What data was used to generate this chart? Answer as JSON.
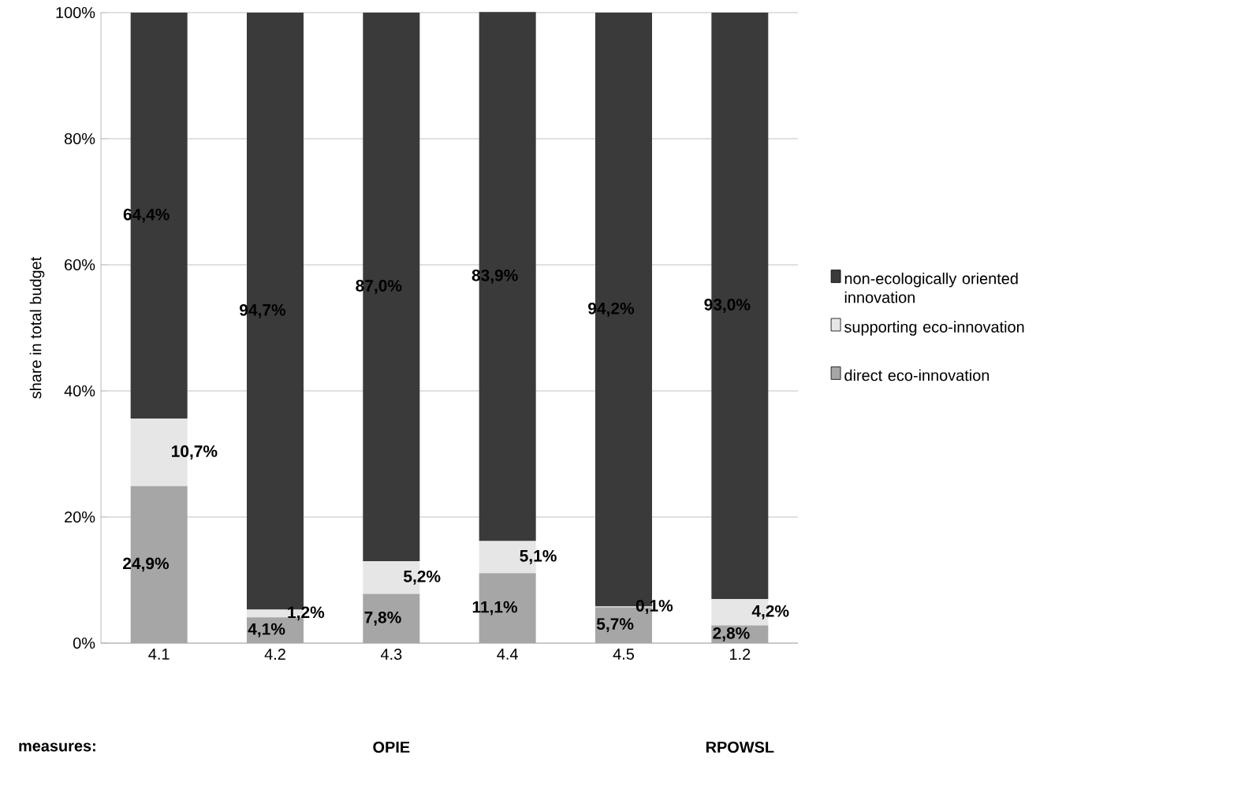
{
  "chart_data": {
    "type": "bar",
    "stacked": true,
    "categories": [
      "4.1",
      "4.2",
      "4.3",
      "4.4",
      "4.5",
      "1.2"
    ],
    "ylabel": "share in total budget",
    "ylim": [
      0,
      100
    ],
    "yticks": [
      {
        "value": 0,
        "label": "0%"
      },
      {
        "value": 20,
        "label": "20%"
      },
      {
        "value": 40,
        "label": "40%"
      },
      {
        "value": 60,
        "label": "60%"
      },
      {
        "value": 80,
        "label": "80%"
      },
      {
        "value": 100,
        "label": "100%"
      }
    ],
    "grid": "y",
    "legend": "right",
    "series": [
      {
        "name": "direct eco-innovation",
        "color": "#a6a6a6",
        "values": [
          24.9,
          4.1,
          7.8,
          11.1,
          5.7,
          2.8
        ],
        "value_labels": [
          "24,9%",
          "4,1%",
          "7,8%",
          "11,1%",
          "5,7%",
          "2,8%"
        ]
      },
      {
        "name": "supporting eco-innovation",
        "color": "#e6e6e6",
        "values": [
          10.7,
          1.2,
          5.2,
          5.1,
          0.1,
          4.2
        ],
        "value_labels": [
          "10,7%",
          "1,2%",
          "5,2%",
          "5,1%",
          "0,1%",
          "4,2%"
        ]
      },
      {
        "name": "non-ecologically oriented innovation",
        "color": "#3a3a3a",
        "values": [
          64.4,
          94.7,
          87.0,
          83.9,
          94.2,
          93.0
        ],
        "value_labels": [
          "64,4%",
          "94,7%",
          "87,0%",
          "83,9%",
          "94,2%",
          "93,0%"
        ]
      }
    ],
    "annotations": [
      "measures:",
      "OPIE",
      "RPOWSL"
    ]
  }
}
